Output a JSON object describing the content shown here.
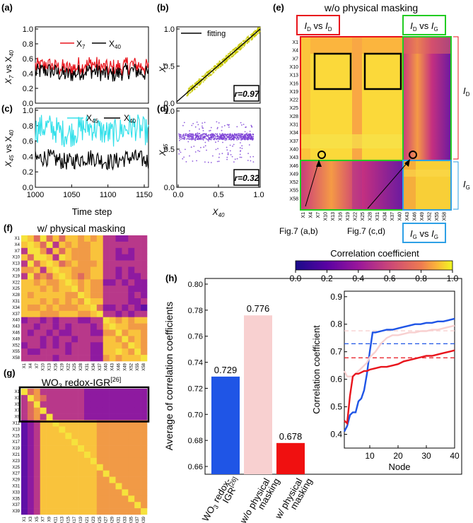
{
  "colors": {
    "red": "#e8141c",
    "black": "#000000",
    "cyan": "#33e0ea",
    "olive": "#c8c800",
    "purple": "#7b3fd6",
    "blue": "#1f55e6",
    "pink": "#f8d0d0",
    "red_bar": "#f01010",
    "box_red": "#e8141c",
    "box_green": "#22cc22",
    "box_blue": "#2ea0e6"
  },
  "panels": {
    "a": {
      "label": "(a)",
      "ylabel_parts": [
        "X",
        "7",
        " vs X",
        "40"
      ],
      "legend": [
        "X7",
        "X40"
      ],
      "yticks": [
        "0.0",
        "0.2",
        "0.4",
        "0.6",
        "0.8",
        "1.0"
      ]
    },
    "b": {
      "label": "(b)",
      "ylabel": "X7",
      "legend": "fitting",
      "r_text": "r=0.97",
      "yticks": [
        "0.0",
        "0.5",
        "1.0"
      ]
    },
    "c": {
      "label": "(c)",
      "ylabel_parts": [
        "X",
        "45",
        " vs X",
        "40"
      ],
      "legend": [
        "X45",
        "X40"
      ],
      "xlabel": "Time step",
      "xticks": [
        "1000",
        "1050",
        "1100",
        "1150"
      ],
      "yticks": [
        "0.0",
        "0.2",
        "0.4",
        "0.6",
        "0.8",
        "1.0"
      ]
    },
    "d": {
      "label": "(d)",
      "ylabel": "X45",
      "xlabel": "X40",
      "r_text": "r=0.32",
      "xticks": [
        "0.0",
        "0.5",
        "1.0"
      ],
      "yticks": [
        "0.0",
        "0.5",
        "1.0"
      ]
    },
    "e": {
      "label": "(e)",
      "title": "w/o physical masking",
      "box1": "ID vs ID",
      "box2": "ID vs IG",
      "box3": "IG vs IG",
      "side_top": "ID",
      "side_bottom": "IG",
      "arrow1": "Fig.7 (a,b)",
      "arrow2": "Fig.7 (c,d)",
      "yticks": [
        "X1",
        "X4",
        "X7",
        "X10",
        "X13",
        "X16",
        "X19",
        "X22",
        "X25",
        "X28",
        "X31",
        "X34",
        "X37",
        "X40",
        "X43",
        "X46",
        "X49",
        "X52",
        "X55",
        "X58"
      ]
    },
    "f": {
      "label": "(f)",
      "title": "w/ physical masking"
    },
    "g": {
      "label": "(g)",
      "title_main": "WO",
      "title_sub": "3",
      "title_rest": " redox-IGR",
      "title_ref": "[26]",
      "xticks": [
        "X1",
        "X3",
        "X5",
        "X7",
        "X9",
        "X11",
        "X13",
        "X15",
        "X17",
        "X19",
        "X21",
        "X23",
        "X25",
        "X27",
        "X29",
        "X31",
        "X33",
        "X35",
        "X37",
        "X39"
      ]
    },
    "h": {
      "label": "(h)",
      "ylabel": "Average of correlation coefficients",
      "yticks": [
        "0.66",
        "0.68",
        "0.70",
        "0.72",
        "0.74",
        "0.76",
        "0.78",
        "0.80"
      ],
      "categories": [
        "WO3 redox-IGR[26]",
        "w/o physical masking",
        "w/ physical masking"
      ],
      "inset": {
        "xlabel": "Node",
        "ylabel": "Correlation coefficient",
        "xticks": [
          "10",
          "20",
          "30",
          "40"
        ],
        "yticks": [
          "0.4",
          "0.5",
          "0.6",
          "0.7",
          "0.8",
          "0.9"
        ]
      }
    }
  },
  "colorbar": {
    "title": "Correlation coefficient",
    "ticks": [
      "0.0",
      "0.2",
      "0.4",
      "0.6",
      "0.8",
      "1.0"
    ]
  },
  "chart_data": [
    {
      "type": "bar",
      "title": "(h)",
      "categories": [
        "WO3 redox-IGR[26]",
        "w/o physical masking",
        "w/ physical masking"
      ],
      "values": [
        0.729,
        0.776,
        0.678
      ],
      "value_labels": [
        "0.729",
        "0.776",
        "0.678"
      ],
      "ylabel": "Average of correlation coefficients",
      "ylim": [
        0.655,
        0.805
      ]
    },
    {
      "type": "line",
      "title": "(h) inset",
      "xlabel": "Node",
      "ylabel": "Correlation coefficient",
      "xlim": [
        1,
        40
      ],
      "ylim": [
        0.35,
        0.92
      ],
      "series": [
        {
          "name": "WO3 redox-IGR",
          "color": "blue",
          "x": [
            1,
            2,
            3,
            4,
            5,
            6,
            7,
            8,
            9,
            10,
            11,
            12,
            14,
            16,
            18,
            20,
            22,
            24,
            26,
            28,
            30,
            32,
            34,
            36,
            38,
            40
          ],
          "y": [
            0.41,
            0.43,
            0.47,
            0.48,
            0.48,
            0.52,
            0.53,
            0.56,
            0.62,
            0.7,
            0.77,
            0.77,
            0.775,
            0.78,
            0.78,
            0.785,
            0.79,
            0.795,
            0.8,
            0.8,
            0.805,
            0.805,
            0.81,
            0.81,
            0.815,
            0.82
          ]
        },
        {
          "name": "w/o physical masking",
          "color": "pink",
          "x": [
            1,
            2,
            3,
            4,
            5,
            6,
            7,
            8,
            9,
            10,
            12,
            14,
            16,
            18,
            20,
            22,
            24,
            26,
            28,
            30,
            32,
            34,
            36,
            38,
            40
          ],
          "y": [
            0.63,
            0.61,
            0.61,
            0.61,
            0.62,
            0.63,
            0.64,
            0.65,
            0.66,
            0.68,
            0.7,
            0.73,
            0.75,
            0.76,
            0.76,
            0.765,
            0.77,
            0.77,
            0.775,
            0.775,
            0.78,
            0.78,
            0.785,
            0.79,
            0.795
          ]
        },
        {
          "name": "w/ physical masking",
          "color": "red",
          "x": [
            1,
            2,
            3,
            4,
            5,
            6,
            7,
            8,
            9,
            10,
            12,
            14,
            16,
            18,
            20,
            22,
            24,
            26,
            28,
            30,
            32,
            34,
            36,
            38,
            40
          ],
          "y": [
            0.45,
            0.44,
            0.54,
            0.61,
            0.62,
            0.62,
            0.625,
            0.63,
            0.63,
            0.635,
            0.64,
            0.645,
            0.645,
            0.65,
            0.655,
            0.665,
            0.67,
            0.675,
            0.68,
            0.685,
            0.685,
            0.69,
            0.695,
            0.7,
            0.705
          ]
        }
      ],
      "hlines": [
        {
          "name": "WO3 redox-IGR avg",
          "color": "blue",
          "y": 0.729
        },
        {
          "name": "w/o physical masking avg",
          "color": "pink",
          "y": 0.776
        },
        {
          "name": "w/ physical masking avg",
          "color": "red",
          "y": 0.678
        }
      ]
    },
    {
      "type": "line",
      "title": "(a)",
      "xlim": [
        1000,
        1150
      ],
      "ylim": [
        0.0,
        1.0
      ],
      "series": [
        {
          "name": "X7",
          "color": "red",
          "base": 0.45
        },
        {
          "name": "X40",
          "color": "black",
          "base": 0.4
        }
      ]
    },
    {
      "type": "line",
      "title": "(c)",
      "xlabel": "Time step",
      "xlim": [
        1000,
        1150
      ],
      "ylim": [
        0.0,
        1.0
      ],
      "series": [
        {
          "name": "X45",
          "color": "cyan",
          "base": 0.62
        },
        {
          "name": "X40",
          "color": "black",
          "base": 0.4
        }
      ]
    },
    {
      "type": "scatter",
      "title": "(b)",
      "xlim": [
        0,
        1
      ],
      "ylim": [
        0,
        1
      ],
      "r": 0.97,
      "fit": [
        [
          0.0,
          0.02
        ],
        [
          1.0,
          0.97
        ]
      ]
    },
    {
      "type": "scatter",
      "title": "(d)",
      "xlim": [
        0,
        1
      ],
      "ylim": [
        0,
        1
      ],
      "r": 0.32
    },
    {
      "type": "heatmap",
      "title": "(e)",
      "colormap": "plasma",
      "range": [
        0.0,
        1.0
      ]
    }
  ]
}
